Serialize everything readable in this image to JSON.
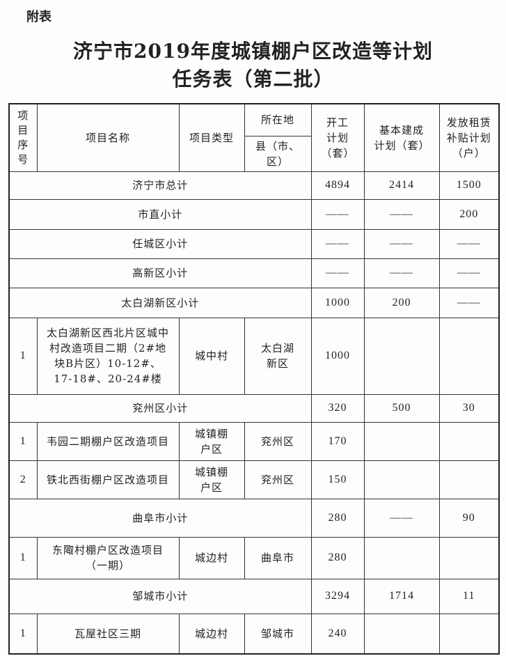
{
  "annex_label": "附表",
  "title_line1": "济宁市2019年度城镇棚户区改造等计划",
  "title_line2": "任务表（第二批）",
  "headers": {
    "seq": "项目序号",
    "name": "项目名称",
    "type": "项目类型",
    "location": "所在地",
    "county": "县（市、区）",
    "start": "开工计划（套）",
    "built": "基本建成计划（套）",
    "subsidy": "发放租赁补贴计划（户）"
  },
  "summary_rows": {
    "total": {
      "label": "济宁市总计",
      "start": "4894",
      "built": "2414",
      "subsidy": "1500"
    },
    "shizhi": {
      "label": "市直小计",
      "start": "——",
      "built": "——",
      "subsidy": "200"
    },
    "rencheng": {
      "label": "任城区小计",
      "start": "——",
      "built": "——",
      "subsidy": "——"
    },
    "gaoxin": {
      "label": "高新区小计",
      "start": "——",
      "built": "——",
      "subsidy": "——"
    },
    "taibaihu": {
      "label": "太白湖新区小计",
      "start": "1000",
      "built": "200",
      "subsidy": "——"
    },
    "yanzhou": {
      "label": "兖州区小计",
      "start": "320",
      "built": "500",
      "subsidy": "30"
    },
    "qufu": {
      "label": "曲阜市小计",
      "start": "280",
      "built": "——",
      "subsidy": "90"
    },
    "zoucheng": {
      "label": "邹城市小计",
      "start": "3294",
      "built": "1714",
      "subsidy": "11"
    }
  },
  "projects": {
    "taibaihu": [
      {
        "seq": "1",
        "name": "太白湖新区西北片区城中村改造项目二期（2#地块B片区）10-12#、17-18#、20-24#楼",
        "type": "城中村",
        "county": "太白湖新区",
        "start": "1000",
        "built": "",
        "subsidy": ""
      }
    ],
    "yanzhou": [
      {
        "seq": "1",
        "name": "韦园二期棚户区改造项目",
        "type": "城镇棚户区",
        "county": "兖州区",
        "start": "170",
        "built": "",
        "subsidy": ""
      },
      {
        "seq": "2",
        "name": "铁北西街棚户区改造项目",
        "type": "城镇棚户区",
        "county": "兖州区",
        "start": "150",
        "built": "",
        "subsidy": ""
      }
    ],
    "qufu": [
      {
        "seq": "1",
        "name": "东陬村棚户区改造项目（一期）",
        "type": "城边村",
        "county": "曲阜市",
        "start": "280",
        "built": "",
        "subsidy": ""
      }
    ],
    "zoucheng": [
      {
        "seq": "1",
        "name": "瓦屋社区三期",
        "type": "城边村",
        "county": "邹城市",
        "start": "240",
        "built": "",
        "subsidy": ""
      }
    ]
  }
}
